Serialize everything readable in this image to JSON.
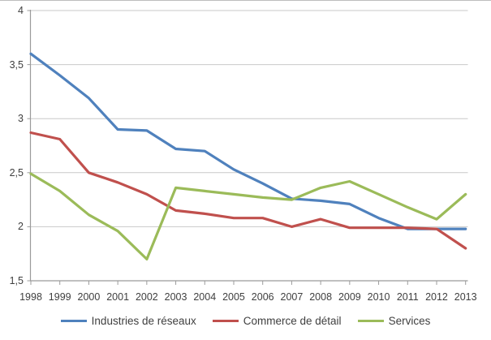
{
  "chart_data": {
    "type": "line",
    "title": "",
    "xlabel": "",
    "ylabel": "",
    "categories": [
      "1998",
      "1999",
      "2000",
      "2001",
      "2002",
      "2003",
      "2004",
      "2005",
      "2006",
      "2007",
      "2008",
      "2009",
      "2010",
      "2011",
      "2012",
      "2013"
    ],
    "series": [
      {
        "name": "Industries de réseaux",
        "color": "#4F81BD",
        "values": [
          3.6,
          3.4,
          3.19,
          2.9,
          2.89,
          2.72,
          2.7,
          2.53,
          2.4,
          2.26,
          2.24,
          2.21,
          2.08,
          1.98,
          1.98,
          1.98
        ]
      },
      {
        "name": "Commerce de détail",
        "color": "#C0504D",
        "values": [
          2.87,
          2.81,
          2.5,
          2.41,
          2.3,
          2.15,
          2.12,
          2.08,
          2.08,
          2.0,
          2.07,
          1.99,
          1.99,
          1.99,
          1.98,
          1.8
        ]
      },
      {
        "name": "Services",
        "color": "#9BBB59",
        "values": [
          2.49,
          2.33,
          2.11,
          1.96,
          1.7,
          2.36,
          2.33,
          2.3,
          2.27,
          2.25,
          2.36,
          2.42,
          2.3,
          2.18,
          2.07,
          2.3
        ]
      }
    ],
    "ylim": [
      1.5,
      4
    ],
    "ytick_step": 0.5,
    "ytick_labels": [
      "1,5",
      "2",
      "2,5",
      "3",
      "3,5",
      "4"
    ],
    "grid": true,
    "legend_position": "bottom",
    "gridline_color": "#c9c9c9",
    "axis_color": "#9b9b9b",
    "text_color": "#3f3f3f"
  }
}
